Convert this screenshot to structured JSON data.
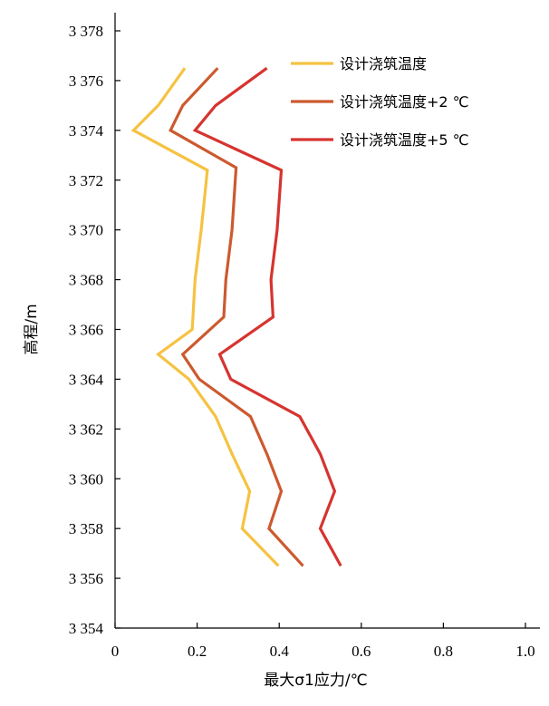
{
  "chart_data": {
    "type": "line",
    "xlabel": "最大σ1应力/℃",
    "ylabel": "高程/m",
    "xlim": [
      0,
      1.0
    ],
    "ylim": [
      3354,
      3378
    ],
    "x_ticks": [
      0,
      0.2,
      0.4,
      0.6,
      0.8,
      1.0
    ],
    "x_tick_labels": [
      "0",
      "0.2",
      "0.4",
      "0.6",
      "0.8",
      "1.0"
    ],
    "y_ticks": [
      3354,
      3356,
      3358,
      3360,
      3362,
      3364,
      3366,
      3368,
      3370,
      3372,
      3374,
      3376,
      3378
    ],
    "y_tick_labels": [
      "3 354",
      "3 356",
      "3 358",
      "3 360",
      "3 362",
      "3 364",
      "3 366",
      "3 368",
      "3 370",
      "3 372",
      "3 374",
      "3 376",
      "3 378"
    ],
    "grid": false,
    "legend_position": "top-right",
    "series": [
      {
        "name": "设计浇筑温度",
        "color": "#F5C242",
        "points": [
          [
            0.398,
            3356.5
          ],
          [
            0.31,
            3358.0
          ],
          [
            0.328,
            3359.5
          ],
          [
            0.285,
            3361.0
          ],
          [
            0.245,
            3362.5
          ],
          [
            0.18,
            3364.0
          ],
          [
            0.105,
            3365.0
          ],
          [
            0.188,
            3366.0
          ],
          [
            0.195,
            3368.0
          ],
          [
            0.21,
            3370.0
          ],
          [
            0.225,
            3372.4
          ],
          [
            0.045,
            3374.0
          ],
          [
            0.105,
            3375.0
          ],
          [
            0.17,
            3376.5
          ]
        ]
      },
      {
        "name": "设计浇筑温度+2 ℃",
        "color": "#CC5A2F",
        "points": [
          [
            0.458,
            3356.5
          ],
          [
            0.375,
            3358.0
          ],
          [
            0.405,
            3359.5
          ],
          [
            0.37,
            3361.0
          ],
          [
            0.33,
            3362.5
          ],
          [
            0.205,
            3364.0
          ],
          [
            0.165,
            3365.0
          ],
          [
            0.265,
            3366.5
          ],
          [
            0.27,
            3368.0
          ],
          [
            0.285,
            3370.0
          ],
          [
            0.295,
            3372.5
          ],
          [
            0.135,
            3374.0
          ],
          [
            0.165,
            3375.0
          ],
          [
            0.25,
            3376.5
          ]
        ]
      },
      {
        "name": "设计浇筑温度+5 ℃",
        "color": "#D63430",
        "points": [
          [
            0.55,
            3356.5
          ],
          [
            0.5,
            3358.0
          ],
          [
            0.535,
            3359.5
          ],
          [
            0.5,
            3361.0
          ],
          [
            0.45,
            3362.5
          ],
          [
            0.282,
            3364.0
          ],
          [
            0.255,
            3365.0
          ],
          [
            0.385,
            3366.5
          ],
          [
            0.38,
            3368.0
          ],
          [
            0.395,
            3370.0
          ],
          [
            0.405,
            3372.4
          ],
          [
            0.195,
            3374.0
          ],
          [
            0.245,
            3375.0
          ],
          [
            0.37,
            3376.5
          ]
        ]
      }
    ]
  }
}
